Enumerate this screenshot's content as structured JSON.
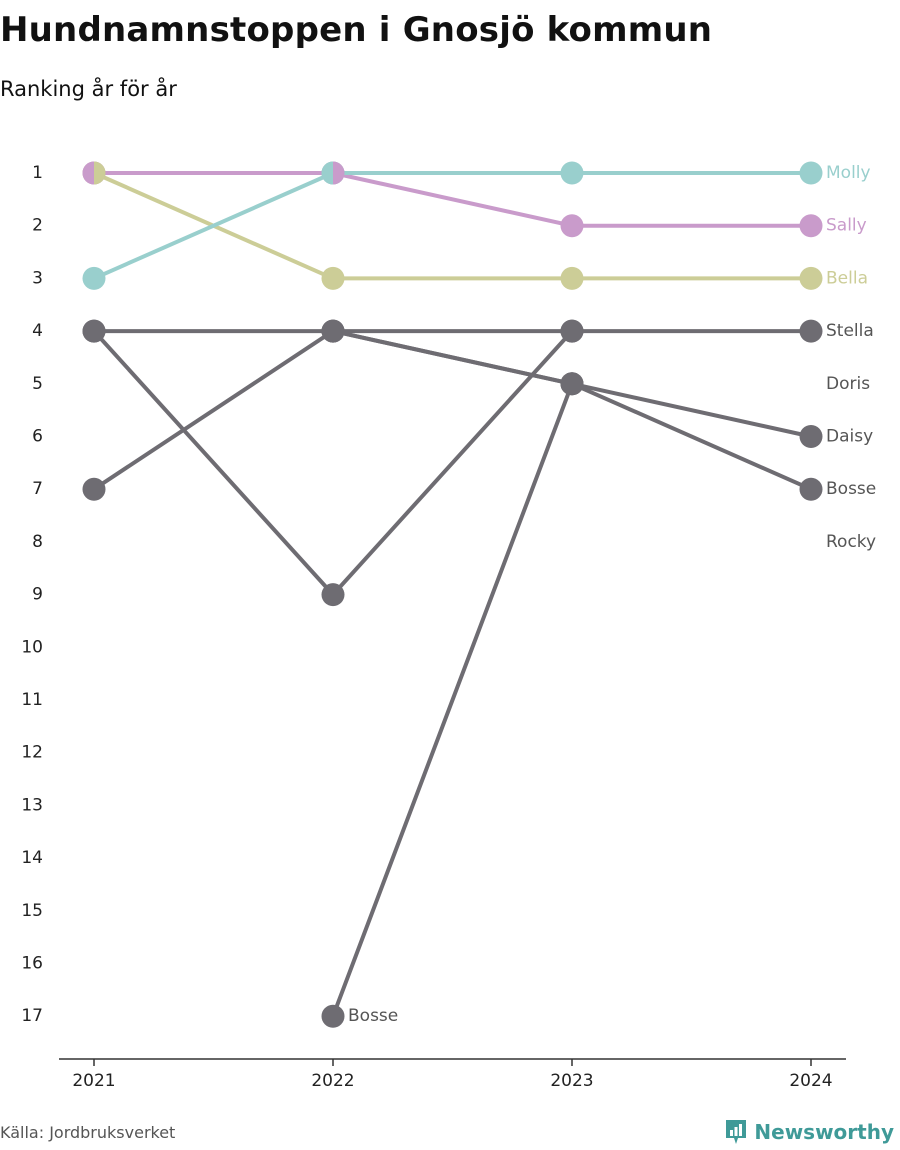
{
  "header": {
    "title": "Hundnamnstoppen i Gnosjö kommun",
    "subtitle": "Ranking år för år"
  },
  "footer": {
    "source": "Källa: Jordbruksverket",
    "brand": "Newsworthy",
    "brand_icon": "newsworthy-logo-icon"
  },
  "colors": {
    "Molly": "#99cfcd",
    "Sally": "#c99bcb",
    "Bella": "#cccd97",
    "other": "#6e6c72",
    "axis": "#333333"
  },
  "chart_data": {
    "type": "line",
    "title": "Hundnamnstoppen i Gnosjö kommun",
    "subtitle": "Ranking år för år",
    "x": [
      "2021",
      "2022",
      "2023",
      "2024"
    ],
    "y_ticks": [
      1,
      2,
      3,
      4,
      5,
      6,
      7,
      8,
      9,
      10,
      11,
      12,
      13,
      14,
      15,
      16,
      17
    ],
    "ylim": [
      1,
      17
    ],
    "y_reversed": true,
    "grid": false,
    "series": [
      {
        "name": "Stella",
        "values": [
          7,
          4,
          4,
          4
        ]
      },
      {
        "name": "Doris",
        "values": [
          4,
          4,
          5,
          null
        ]
      },
      {
        "name": "Daisy",
        "values": [
          null,
          4,
          5,
          6
        ]
      },
      {
        "name": "Rocky",
        "values": [
          4,
          9,
          4,
          null
        ]
      },
      {
        "name": "Bosse",
        "values": [
          null,
          17,
          5,
          7
        ]
      },
      {
        "name": "Bella",
        "values": [
          1,
          3,
          3,
          3
        ]
      },
      {
        "name": "Sally",
        "values": [
          1,
          1,
          2,
          2
        ]
      },
      {
        "name": "Molly",
        "values": [
          3,
          1,
          1,
          1
        ]
      }
    ],
    "end_labels": [
      {
        "name": "Molly",
        "rank": 1,
        "color": "#99cfcd"
      },
      {
        "name": "Sally",
        "rank": 2,
        "color": "#c99bcb"
      },
      {
        "name": "Bella",
        "rank": 3,
        "color": "#cccd97"
      },
      {
        "name": "Stella",
        "rank": 4,
        "color": "#555555"
      },
      {
        "name": "Doris",
        "rank": 5,
        "color": "#555555"
      },
      {
        "name": "Daisy",
        "rank": 6,
        "color": "#555555"
      },
      {
        "name": "Bosse",
        "rank": 7,
        "color": "#555555"
      },
      {
        "name": "Rocky",
        "rank": 8,
        "color": "#555555"
      }
    ],
    "annotations": [
      {
        "text": "Bosse",
        "x": "2022",
        "rank": 17
      }
    ]
  }
}
